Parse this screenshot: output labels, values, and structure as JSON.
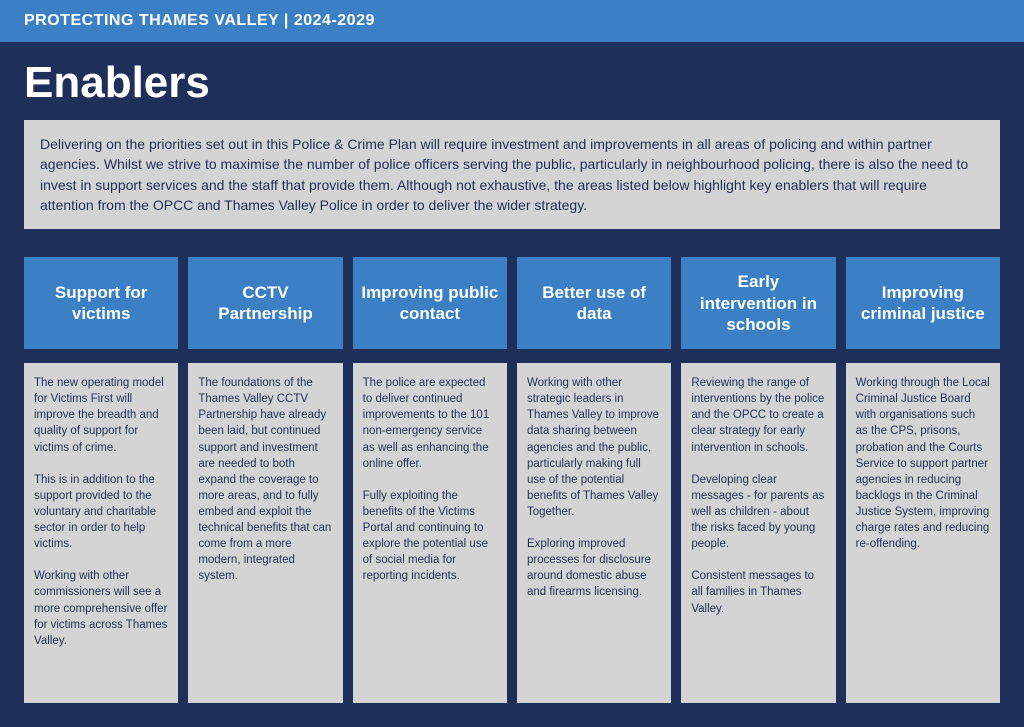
{
  "banner": "PROTECTING THAMES VALLEY | 2024-2029",
  "title": "Enablers",
  "intro": "Delivering on the priorities set out in this Police & Crime Plan will require investment and improvements in all areas of policing and within partner agencies. Whilst we strive to maximise the number of police officers serving the public, particularly in neighbourhood policing, there is also the need to invest in support services and the staff that provide them. Although not exhaustive, the areas listed below highlight key enablers that will require attention from the OPCC and Thames Valley Police in order to deliver the wider strategy.",
  "colors": {
    "page_bg": "#1e2f5a",
    "banner_bg": "#3b7fc4",
    "card_header_bg": "#3b7fc4",
    "text_light": "#ffffff",
    "box_bg": "#d4d4d4",
    "box_text": "#1e2f5a"
  },
  "cards": [
    {
      "heading": "Support for victims",
      "body": "The new operating model for Victims First will improve the breadth and quality of support for victims of crime.\n\nThis is in addition to the support provided to the voluntary and charitable sector in order to help victims.\n\nWorking with other commissioners will see a more comprehensive offer for victims across Thames Valley."
    },
    {
      "heading": "CCTV Partnership",
      "body": "The foundations of the Thames Valley CCTV Partnership have already been laid, but continued support and investment are needed to both expand the coverage to more areas, and to fully embed and exploit the technical benefits that can come from a more modern, integrated system."
    },
    {
      "heading": "Improving public contact",
      "body": "The police are expected to deliver continued improvements to the 101 non-emergency service as well as enhancing the online offer.\n\nFully exploiting the benefits of the Victims Portal and continuing to explore the potential use of social media for reporting incidents."
    },
    {
      "heading": "Better use of data",
      "body": "Working with other strategic leaders in Thames Valley to improve data sharing between agencies and the public, particularly making full use of the potential benefits of Thames Valley Together.\n\nExploring improved processes for disclosure around domestic abuse and firearms licensing."
    },
    {
      "heading": "Early intervention in schools",
      "body": "Reviewing the range of interventions by the police and the OPCC to create a clear strategy for early intervention in schools.\n\nDeveloping clear messages - for parents as well as children - about the risks faced by young people.\n\nConsistent messages to all families in Thames Valley."
    },
    {
      "heading": "Improving criminal justice",
      "body": "Working through the Local Criminal Justice Board with organisations such as the CPS, prisons, probation and the Courts Service to support partner agencies in reducing backlogs in the Criminal Justice System, improving charge rates and reducing re-offending."
    }
  ]
}
